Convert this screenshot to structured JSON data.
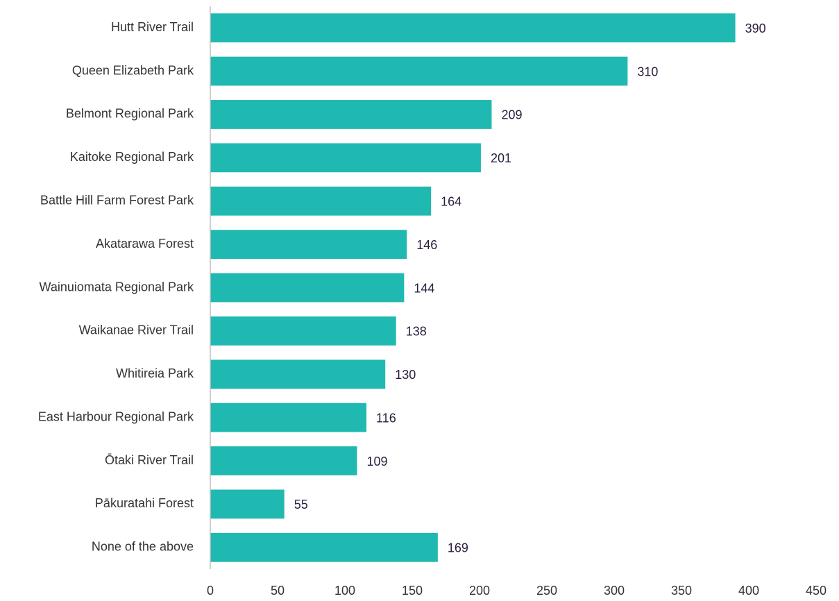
{
  "chart_data": {
    "type": "bar",
    "orientation": "horizontal",
    "categories": [
      "Hutt River Trail",
      "Queen Elizabeth Park",
      "Belmont Regional Park",
      "Kaitoke Regional Park",
      "Battle Hill Farm Forest Park",
      "Akatarawa Forest",
      "Wainuiomata Regional Park",
      "Waikanae River Trail",
      "Whitireia Park",
      "East Harbour Regional Park",
      "Ōtaki River Trail",
      "Pākuratahi Forest",
      "None of the above"
    ],
    "values": [
      390,
      310,
      209,
      201,
      164,
      146,
      144,
      138,
      130,
      116,
      109,
      55,
      169
    ],
    "color": "#20b9b1",
    "xlim": [
      0,
      450
    ],
    "xticks": [
      0,
      50,
      100,
      150,
      200,
      250,
      300,
      350,
      400,
      450
    ],
    "grid": false
  }
}
